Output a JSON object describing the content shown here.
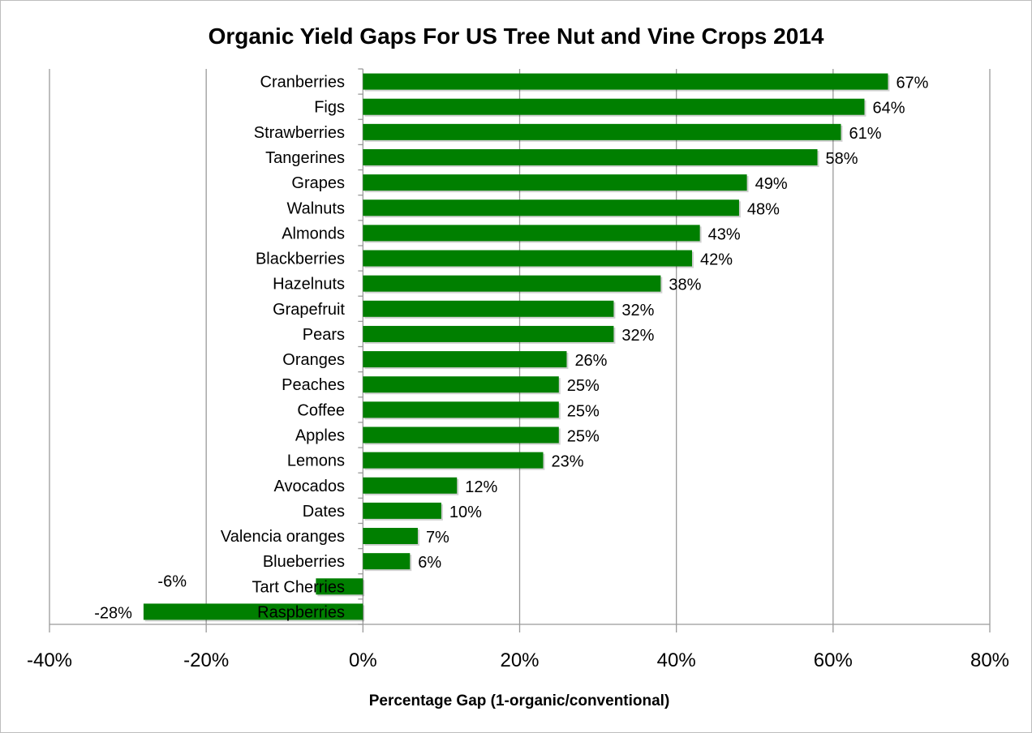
{
  "chart_data": {
    "type": "bar",
    "orientation": "horizontal",
    "title": "Organic Yield Gaps For US Tree Nut and Vine Crops 2014",
    "xlabel": "Percentage Gap (1-organic/conventional)",
    "ylabel": "",
    "xlim": [
      -40,
      80
    ],
    "xticks": [
      "-40%",
      "-20%",
      "0%",
      "20%",
      "40%",
      "60%",
      "80%"
    ],
    "xtick_values": [
      -40,
      -20,
      0,
      20,
      40,
      60,
      80
    ],
    "grid": "vertical",
    "bar_color": "#007f00",
    "categories": [
      "Cranberries",
      "Figs",
      "Strawberries",
      "Tangerines",
      "Grapes",
      "Walnuts",
      "Almonds",
      "Blackberries",
      "Hazelnuts",
      "Grapefruit",
      "Pears",
      "Oranges",
      "Peaches",
      "Coffee",
      "Apples",
      "Lemons",
      "Avocados",
      "Dates",
      "Valencia oranges",
      "Blueberries",
      "Tart Cherries",
      "Raspberries"
    ],
    "values": [
      67,
      64,
      61,
      58,
      49,
      48,
      43,
      42,
      38,
      32,
      32,
      26,
      25,
      25,
      25,
      23,
      12,
      10,
      7,
      6,
      -6,
      -28
    ],
    "value_labels": [
      "67%",
      "64%",
      "61%",
      "58%",
      "49%",
      "48%",
      "43%",
      "42%",
      "38%",
      "32%",
      "32%",
      "26%",
      "25%",
      "25%",
      "25%",
      "23%",
      "12%",
      "10%",
      "7%",
      "6%",
      "-6%",
      "-28%"
    ]
  }
}
